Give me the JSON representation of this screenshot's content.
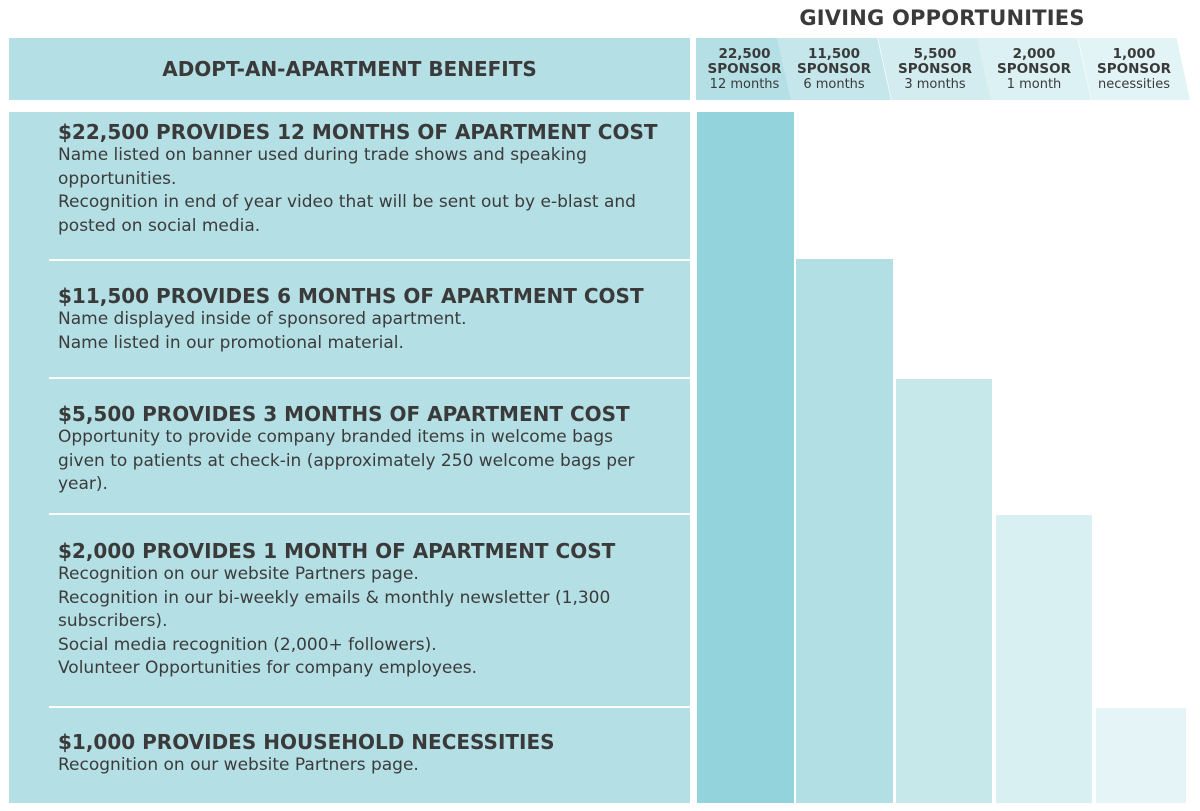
{
  "giving_title": "GIVING OPPORTUNITIES",
  "benefits_header": "ADOPT-AN-APARTMENT BENEFITS",
  "tiers": [
    {
      "amount": "22,500",
      "label": "SPONSOR",
      "sub": "12 months",
      "color": "#93d3db"
    },
    {
      "amount": "11,500",
      "label": "SPONSOR",
      "sub": "6 months",
      "color": "#b1dfe4"
    },
    {
      "amount": "5,500",
      "label": "SPONSOR",
      "sub": "3 months",
      "color": "#c6e8eb"
    },
    {
      "amount": "2,000",
      "label": "SPONSOR",
      "sub": "1 month",
      "color": "#d9f0f2"
    },
    {
      "amount": "1,000",
      "label": "SPONSOR",
      "sub": "necessities",
      "color": "#e5f4f6"
    }
  ],
  "benefits": [
    {
      "title": "$22,500 PROVIDES 12 MONTHS OF APARTMENT COST",
      "lines": [
        "Name listed on banner used during trade shows and speaking",
        "opportunities.",
        "Recognition in end of year video that will be sent out by e-blast and",
        "posted on social media."
      ]
    },
    {
      "title": "$11,500 PROVIDES 6 MONTHS OF APARTMENT COST",
      "lines": [
        "Name displayed inside of sponsored apartment.",
        "Name listed in our promotional material."
      ]
    },
    {
      "title": "$5,500 PROVIDES 3 MONTHS OF APARTMENT COST",
      "lines": [
        "Opportunity to provide company branded items in welcome bags",
        "given to patients at check-in (approximately 250 welcome bags per",
        "year)."
      ]
    },
    {
      "title": "$2,000 PROVIDES 1 MONTH OF APARTMENT COST",
      "lines": [
        "Recognition on our website Partners page.",
        "Recognition in our bi-weekly emails & monthly newsletter (1,300",
        "subscribers).",
        "Social media recognition (2,000+ followers).",
        "Volunteer Opportunities for company employees."
      ]
    },
    {
      "title": "$1,000 PROVIDES HOUSEHOLD NECESSITIES",
      "lines": [
        "Recognition on our website Partners page."
      ]
    }
  ]
}
